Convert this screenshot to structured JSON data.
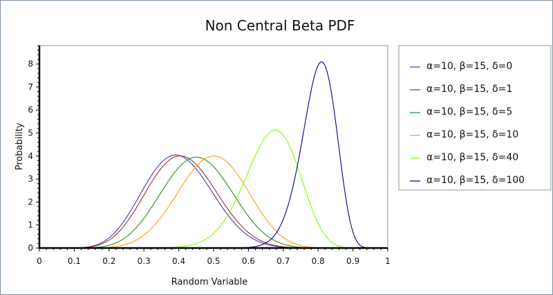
{
  "chart_data": {
    "type": "line",
    "title": "Non Central Beta PDF",
    "xlabel": "Random Variable",
    "ylabel": "Probability",
    "xlim": [
      0,
      1
    ],
    "ylim": [
      0,
      8.8
    ],
    "xticks": [
      "0",
      "0.1",
      "0.2",
      "0.3",
      "0.4",
      "0.5",
      "0.6",
      "0.7",
      "0.8",
      "0.9",
      "1"
    ],
    "yticks": [
      "0",
      "1",
      "2",
      "3",
      "4",
      "5",
      "6",
      "7",
      "8"
    ],
    "grid": false,
    "legend_position": "right",
    "series": [
      {
        "name": "α=10, β=15, δ=0",
        "alpha": 10,
        "beta": 15,
        "delta": 0,
        "color": "#3a3ab0"
      },
      {
        "name": "α=10, β=15, δ=1",
        "alpha": 10,
        "beta": 15,
        "delta": 1,
        "color": "#a52a2a"
      },
      {
        "name": "α=10, β=15, δ=5",
        "alpha": 10,
        "beta": 15,
        "delta": 5,
        "color": "#228b22"
      },
      {
        "name": "α=10, β=15, δ=10",
        "alpha": 10,
        "beta": 15,
        "delta": 10,
        "color": "#ff9a10"
      },
      {
        "name": "α=10, β=15, δ=40",
        "alpha": 10,
        "beta": 15,
        "delta": 40,
        "color": "#7fff00"
      },
      {
        "name": "α=10, β=15, δ=100",
        "alpha": 10,
        "beta": 15,
        "delta": 100,
        "color": "#00008b"
      }
    ]
  }
}
